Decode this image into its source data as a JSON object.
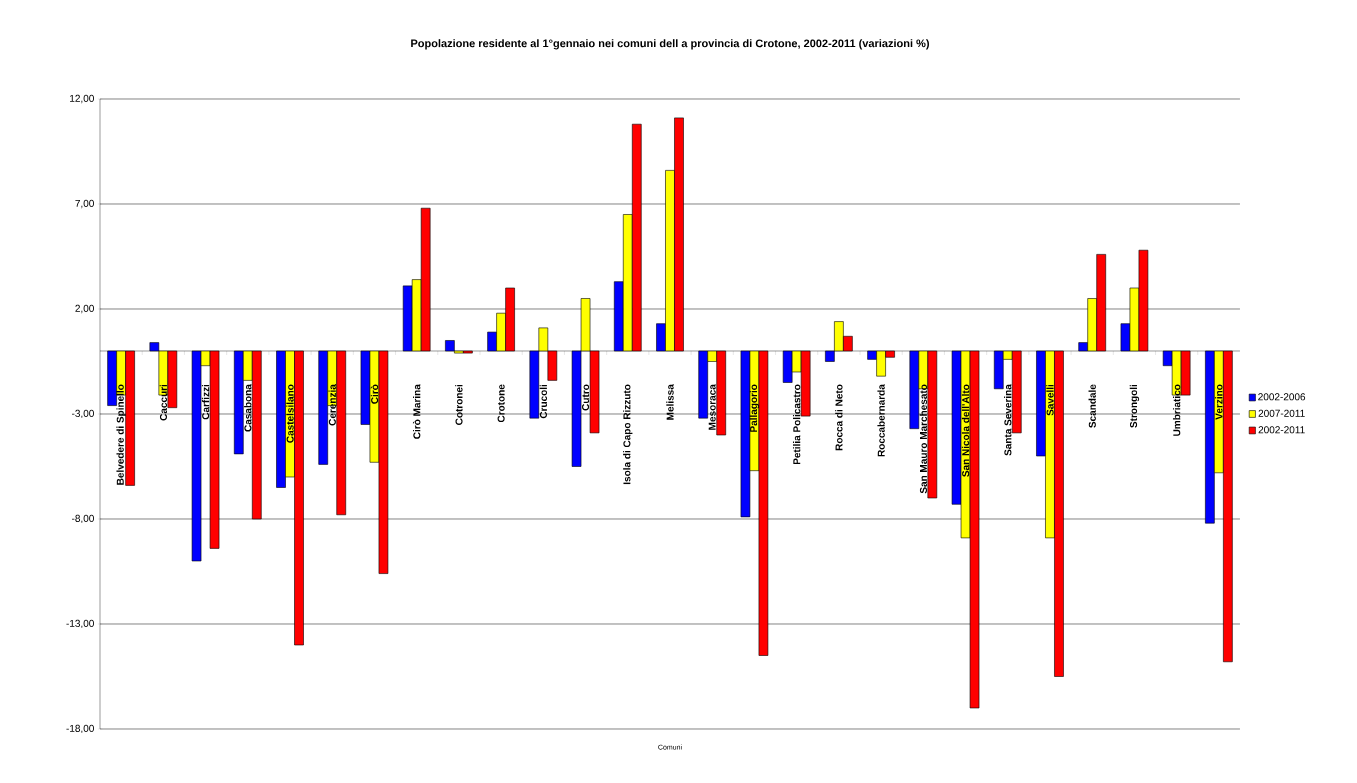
{
  "chart_data": {
    "type": "bar",
    "title": "Popolazione residente al 1°gennaio nei comuni dell a provincia di Crotone, 2002-2011 (variazioni %)",
    "xlabel": "Comuni",
    "categories": [
      "Belvedere di Spinello",
      "Caccuri",
      "Carfizzi",
      "Casabona",
      "Castelsilano",
      "Cerenzia",
      "Cirò",
      "Cirò Marina",
      "Cotronei",
      "Crotone",
      "Crucoli",
      "Cutro",
      "Isola di Capo Rizzuto",
      "Melissa",
      "Mesoraca",
      "Pallagorio",
      "Petilia Policastro",
      "Rocca di Neto",
      "Roccabernarda",
      "San Mauro Marchesato",
      "San Nicola dell'Alto",
      "Santa Severina",
      "Savelli",
      "Scandale",
      "Strongoli",
      "Umbriatico",
      "Verzino"
    ],
    "series": [
      {
        "name": "2002-2006",
        "color": "#0000ff",
        "values": [
          -2.6,
          0.4,
          -10.0,
          -4.9,
          -6.5,
          -5.4,
          -3.5,
          3.1,
          0.5,
          0.9,
          -3.2,
          -5.5,
          3.3,
          1.3,
          -3.2,
          -7.9,
          -1.5,
          -0.5,
          -0.4,
          -3.7,
          -7.3,
          -1.8,
          -5.0,
          0.4,
          1.3,
          -0.7,
          -8.2
        ]
      },
      {
        "name": "2007-2011",
        "color": "#ffff00",
        "values": [
          -2.1,
          -2.1,
          -0.7,
          -1.4,
          -6.0,
          -2.6,
          -5.3,
          3.4,
          -0.1,
          1.8,
          1.1,
          2.5,
          6.5,
          8.6,
          -0.5,
          -5.7,
          -1.0,
          1.4,
          -1.2,
          -1.8,
          -8.9,
          -0.4,
          -8.9,
          2.5,
          3.0,
          -2.1,
          -5.8
        ]
      },
      {
        "name": "2002-2011",
        "color": "#ff0000",
        "values": [
          -6.4,
          -2.7,
          -9.4,
          -8.0,
          -14.0,
          -7.8,
          -10.6,
          6.8,
          -0.1,
          3.0,
          -1.4,
          -3.9,
          10.8,
          11.1,
          -4.0,
          -14.5,
          -3.1,
          0.7,
          -0.3,
          -7.0,
          -17.0,
          -3.9,
          -15.5,
          4.6,
          4.8,
          -2.1,
          -14.8
        ]
      }
    ],
    "ylim": [
      -18,
      12
    ],
    "yticks": [
      {
        "value": -18,
        "label": "-18,00"
      },
      {
        "value": -13,
        "label": "-13,00"
      },
      {
        "value": -8,
        "label": "-8,00"
      },
      {
        "value": -3,
        "label": "-3,00"
      },
      {
        "value": 2,
        "label": "2,00"
      },
      {
        "value": 7,
        "label": "7,00"
      },
      {
        "value": 12,
        "label": "12,00"
      }
    ],
    "grid": "y",
    "legend": "right"
  }
}
